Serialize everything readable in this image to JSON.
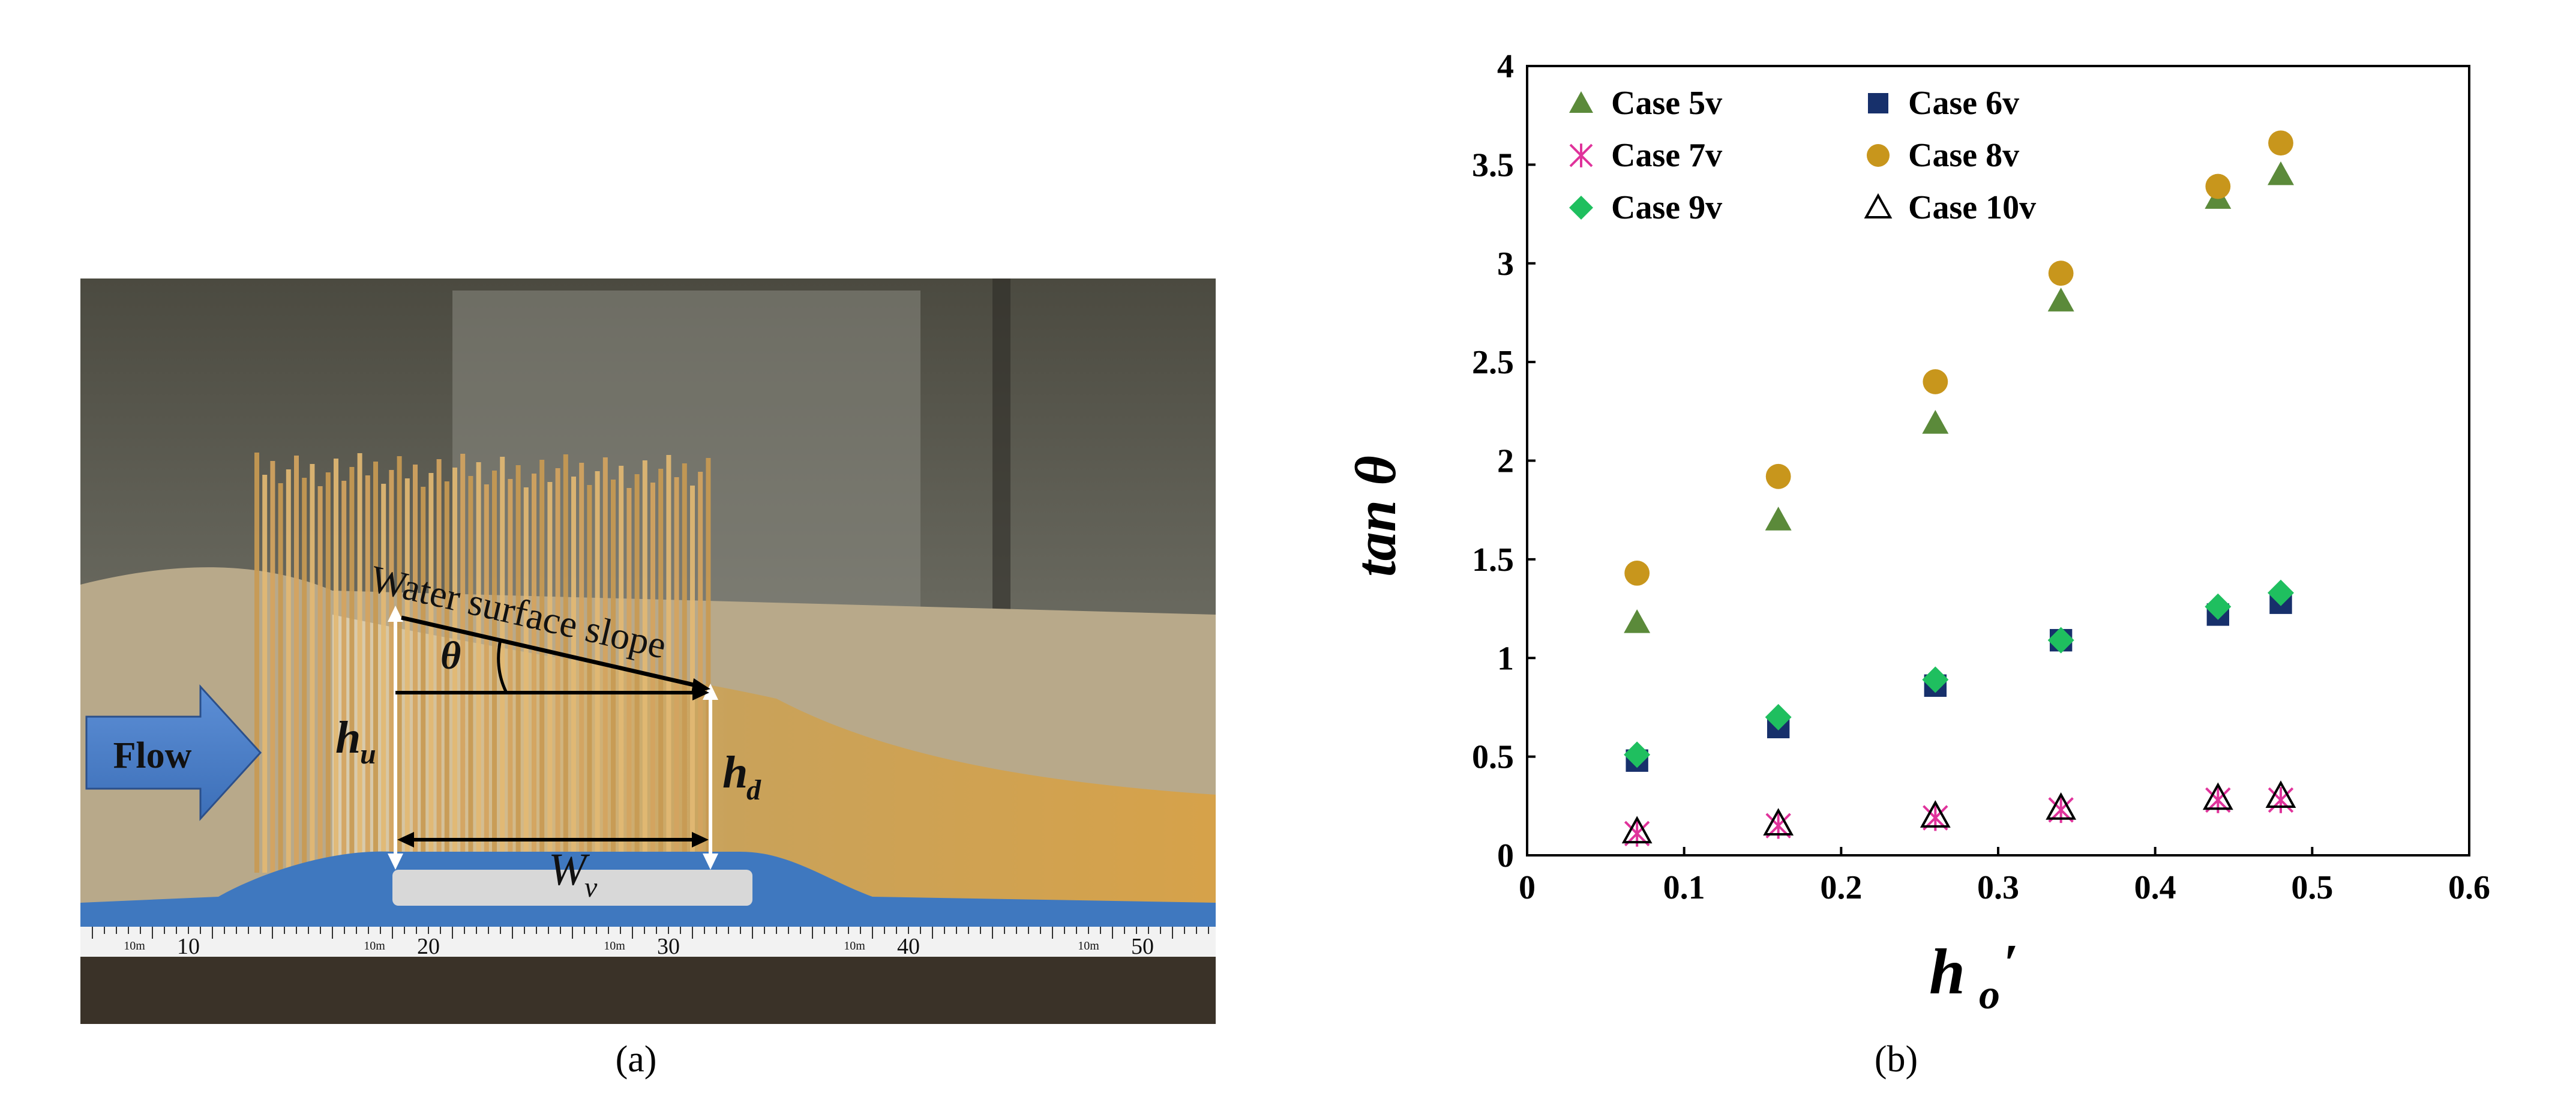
{
  "photo": {
    "flow_label": "Flow",
    "surface_label": "Water surface slope",
    "theta_label": "θ",
    "hu_main": "h",
    "hu_sub": "u",
    "hd_main": "h",
    "hd_sub": "d",
    "wv_main": "W",
    "wv_sub": "v",
    "ruler_numbers": [
      "10",
      "20",
      "30",
      "40",
      "50"
    ],
    "ruler_small": "10m"
  },
  "captions": {
    "a": "(a)",
    "b": "(b)"
  },
  "chart_data": {
    "type": "scatter",
    "xlabel_main": "h",
    "xlabel_sub": "o",
    "xlabel_prime": "′",
    "ylabel": "tan θ",
    "xlim": [
      0,
      0.6
    ],
    "ylim": [
      0,
      4
    ],
    "xticks": [
      "0",
      "0.1",
      "0.2",
      "0.3",
      "0.4",
      "0.5",
      "0.6"
    ],
    "yticks": [
      "0",
      "0.5",
      "1",
      "1.5",
      "2",
      "2.5",
      "3",
      "3.5",
      "4"
    ],
    "grid": false,
    "legend_position": "top-left",
    "x": [
      0.07,
      0.16,
      0.26,
      0.34,
      0.44,
      0.48
    ],
    "series": [
      {
        "name": "Case 5v",
        "marker": "triangle",
        "color": "#5b8a3a",
        "values": [
          1.18,
          1.7,
          2.19,
          2.81,
          3.33,
          3.45
        ]
      },
      {
        "name": "Case 6v",
        "marker": "square",
        "color": "#17306b",
        "values": [
          0.48,
          0.65,
          0.86,
          1.09,
          1.22,
          1.28
        ]
      },
      {
        "name": "Case 7v",
        "marker": "asterisk",
        "color": "#e0339b",
        "values": [
          0.11,
          0.15,
          0.19,
          0.23,
          0.28,
          0.28
        ]
      },
      {
        "name": "Case 8v",
        "marker": "circle",
        "color": "#c8961c",
        "values": [
          1.43,
          1.92,
          2.4,
          2.95,
          3.39,
          3.61
        ]
      },
      {
        "name": "Case 9v",
        "marker": "diamond",
        "color": "#1fbf5f",
        "values": [
          0.51,
          0.7,
          0.89,
          1.09,
          1.26,
          1.33
        ]
      },
      {
        "name": "Case 10v",
        "marker": "open-triangle",
        "color": "#000000",
        "values": [
          0.12,
          0.16,
          0.2,
          0.24,
          0.29,
          0.3
        ]
      }
    ]
  }
}
